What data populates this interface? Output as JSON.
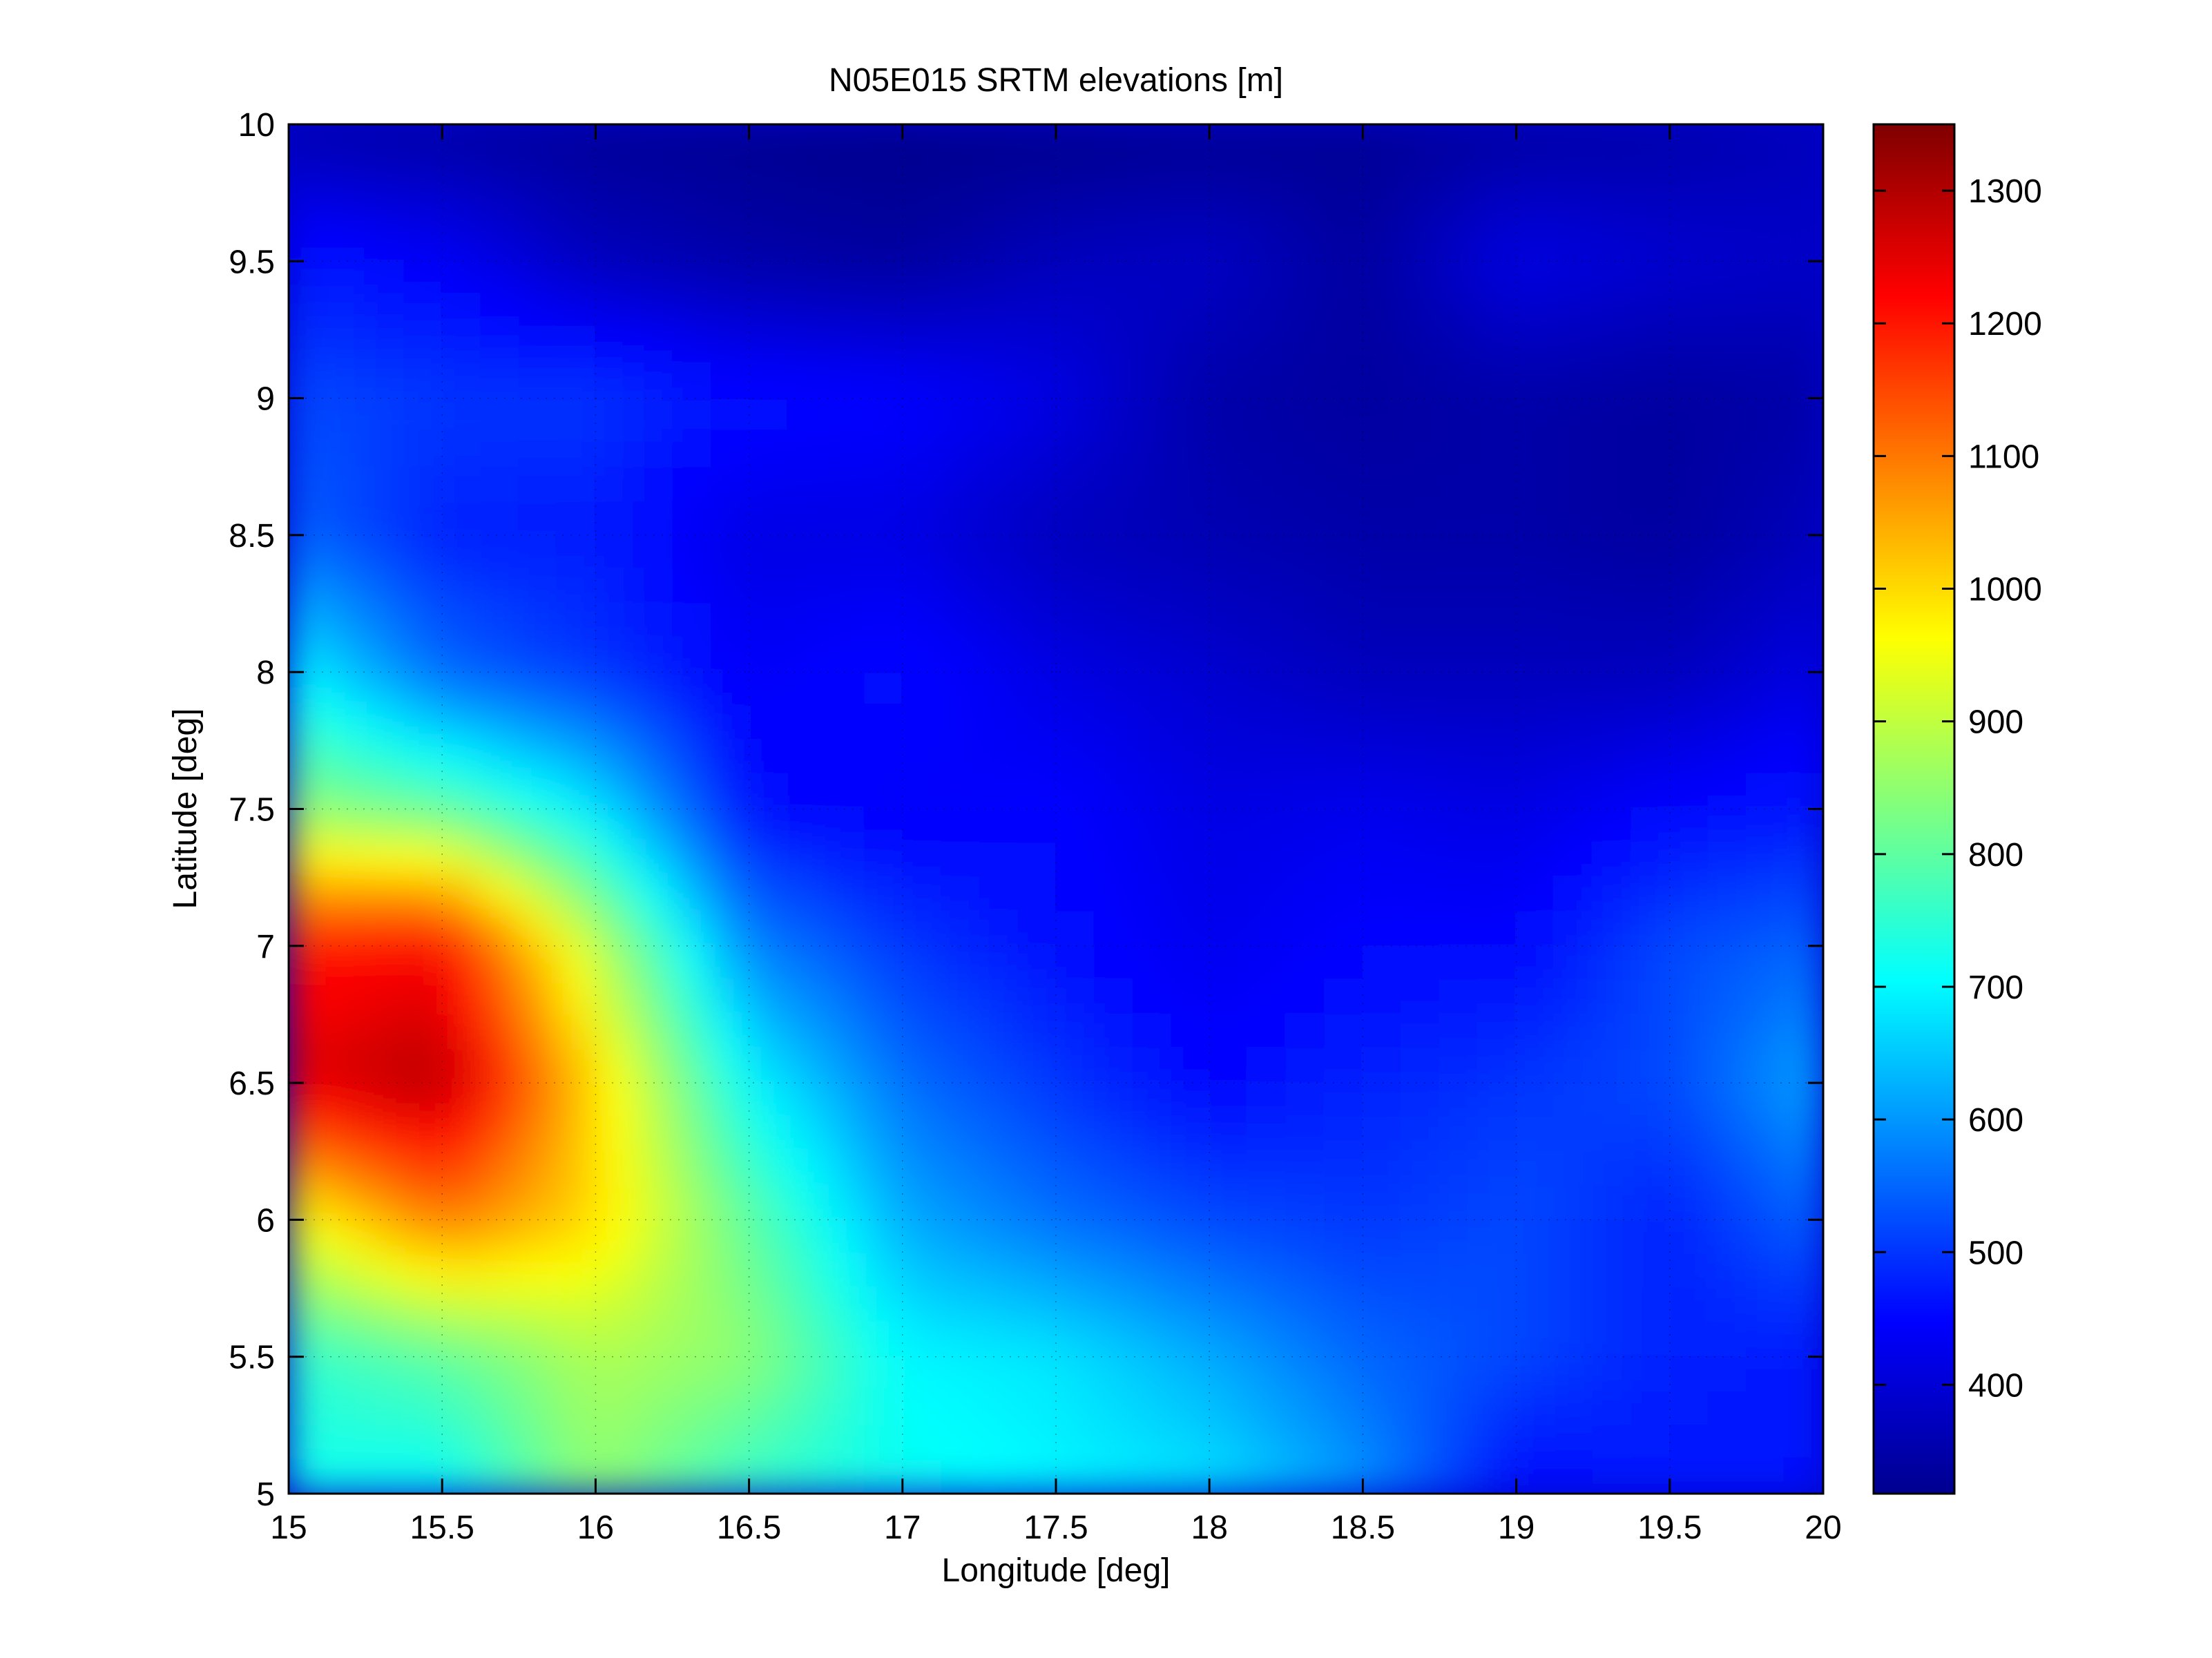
{
  "chart_data": {
    "type": "heatmap",
    "title": "N05E015 SRTM elevations [m]",
    "xlabel": "Longitude [deg]",
    "ylabel": "Latitude [deg]",
    "xlim": [
      15,
      20
    ],
    "ylim": [
      5,
      10
    ],
    "grid": true,
    "x_ticks": [
      15,
      15.5,
      16,
      16.5,
      17,
      17.5,
      18,
      18.5,
      19,
      19.5,
      20
    ],
    "x_tick_labels": [
      "15",
      "15.5",
      "16",
      "16.5",
      "17",
      "17.5",
      "18",
      "18.5",
      "19",
      "19.5",
      "20"
    ],
    "y_ticks": [
      5,
      5.5,
      6,
      6.5,
      7,
      7.5,
      8,
      8.5,
      9,
      9.5,
      10
    ],
    "y_tick_labels": [
      "5",
      "5.5",
      "6",
      "6.5",
      "7",
      "7.5",
      "8",
      "8.5",
      "9",
      "9.5",
      "10"
    ],
    "colorbar": {
      "colormap": "jet",
      "clim": [
        318,
        1350
      ],
      "ticks": [
        400,
        500,
        600,
        700,
        800,
        900,
        1000,
        1100,
        1200,
        1300
      ],
      "tick_labels": [
        "400",
        "500",
        "600",
        "700",
        "800",
        "900",
        "1000",
        "1100",
        "1200",
        "1300"
      ]
    },
    "elevation_grid": {
      "lon_start": 15,
      "lon_step": 0.5,
      "lat_start": 10,
      "lat_step": -0.5,
      "rows": [
        [
          360,
          350,
          340,
          335,
          330,
          330,
          335,
          340,
          350,
          360,
          380
        ],
        [
          470,
          440,
          380,
          360,
          350,
          380,
          390,
          350,
          420,
          400,
          390
        ],
        [
          520,
          500,
          500,
          460,
          450,
          420,
          360,
          350,
          360,
          350,
          360
        ],
        [
          550,
          480,
          470,
          420,
          420,
          380,
          370,
          360,
          360,
          350,
          380
        ],
        [
          700,
          550,
          500,
          440,
          460,
          420,
          400,
          380,
          380,
          380,
          420
        ],
        [
          850,
          800,
          680,
          460,
          440,
          450,
          420,
          430,
          420,
          450,
          470
        ],
        [
          1200,
          1220,
          900,
          580,
          500,
          460,
          430,
          450,
          450,
          520,
          550
        ],
        [
          1250,
          1300,
          1000,
          700,
          560,
          500,
          450,
          480,
          500,
          520,
          620
        ],
        [
          950,
          1100,
          1000,
          800,
          620,
          560,
          520,
          500,
          520,
          480,
          550
        ],
        [
          750,
          800,
          880,
          850,
          700,
          680,
          620,
          550,
          520,
          480,
          470
        ],
        [
          720,
          700,
          850,
          750,
          720,
          700,
          680,
          600,
          450,
          470,
          460
        ]
      ]
    }
  }
}
